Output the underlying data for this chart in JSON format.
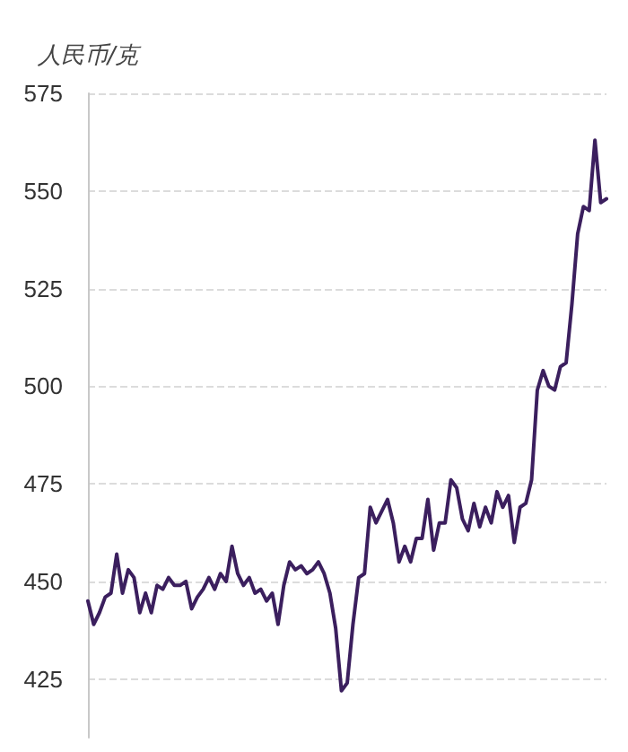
{
  "chart_data": {
    "type": "line",
    "ylabel": "人民币/克",
    "categories": [
      null,
      null,
      null,
      null,
      null,
      null,
      null,
      null,
      null,
      null,
      null,
      null,
      null,
      null,
      null,
      null,
      null,
      null,
      null,
      null,
      null,
      null,
      null,
      null,
      null,
      null,
      null,
      null,
      null,
      null,
      null,
      null,
      null,
      null,
      null,
      null,
      null,
      null,
      null,
      null,
      null,
      null,
      null,
      null,
      null,
      null,
      null,
      null,
      null,
      null,
      null,
      null,
      null,
      null,
      null,
      null,
      null,
      null,
      null,
      null,
      null,
      null,
      null,
      null,
      null,
      null,
      null,
      null,
      null,
      null,
      null,
      null,
      null,
      null,
      null,
      null,
      null,
      null,
      null,
      null,
      null,
      null,
      null,
      null,
      null,
      null,
      null,
      null,
      null,
      null,
      null
    ],
    "series": [
      {
        "color": "#3b1f5e",
        "values": [
          445,
          439,
          442,
          446,
          447,
          457,
          447,
          453,
          451,
          442,
          447,
          442,
          449,
          448,
          451,
          449,
          449,
          450,
          443,
          446,
          448,
          451,
          448,
          452,
          450,
          459,
          452,
          449,
          451,
          447,
          448,
          445,
          447,
          439,
          449,
          455,
          453,
          454,
          452,
          453,
          455,
          452,
          447,
          438,
          422,
          424,
          439,
          451,
          452,
          469,
          465,
          468,
          471,
          465,
          455,
          459,
          455,
          461,
          461,
          471,
          458,
          465,
          465,
          476,
          474,
          466,
          463,
          470,
          464,
          469,
          465,
          473,
          469,
          472,
          460,
          469,
          470,
          476,
          499,
          504,
          500,
          499,
          505,
          506,
          521,
          539,
          546,
          545,
          563,
          547,
          548
        ]
      }
    ],
    "ylim": [
      410,
      575
    ],
    "yticks": [
      425,
      450,
      475,
      500,
      525,
      550,
      575
    ],
    "grid": "y",
    "tick_labels": "y",
    "line_style": "solid"
  }
}
